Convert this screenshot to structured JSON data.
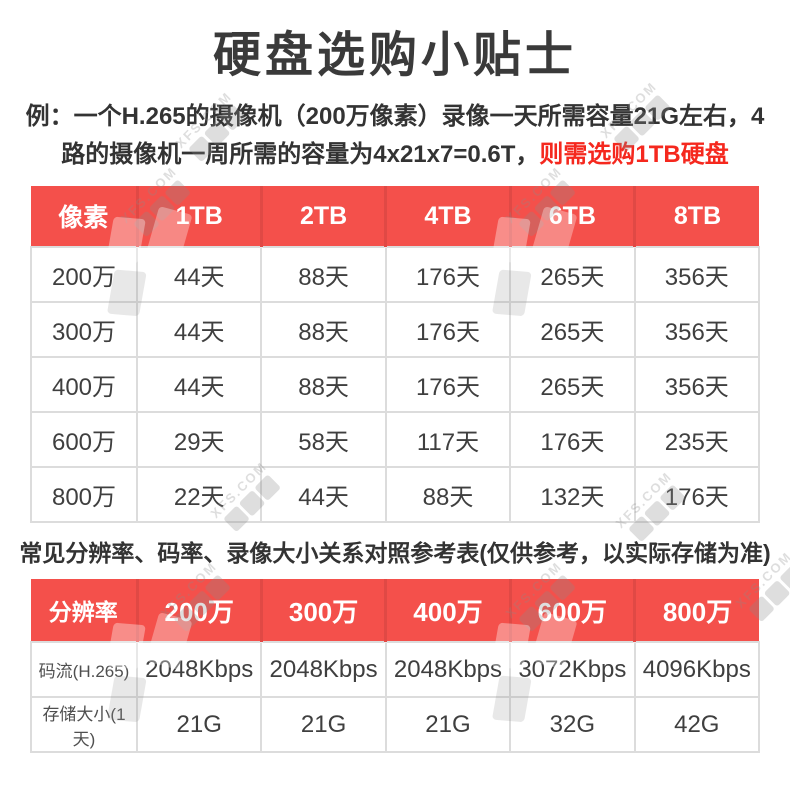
{
  "title": "硬盘选购小贴士",
  "example": {
    "line1": "例：一个H.265的摄像机（200万像素）录像一天所需容量21G左右，4",
    "line2_black": "路的摄像机一周所需的容量为4x21x7=0.6T，",
    "line2_red": "则需选购1TB硬盘"
  },
  "capacity_table": {
    "headers": [
      "像素",
      "1TB",
      "2TB",
      "4TB",
      "6TB",
      "8TB"
    ],
    "rows": [
      {
        "label": "200万",
        "values": [
          "44天",
          "88天",
          "176天",
          "265天",
          "356天"
        ]
      },
      {
        "label": "300万",
        "values": [
          "44天",
          "88天",
          "176天",
          "265天",
          "356天"
        ]
      },
      {
        "label": "400万",
        "values": [
          "44天",
          "88天",
          "176天",
          "265天",
          "356天"
        ]
      },
      {
        "label": "600万",
        "values": [
          "29天",
          "58天",
          "117天",
          "176天",
          "235天"
        ]
      },
      {
        "label": "800万",
        "values": [
          "22天",
          "44天",
          "88天",
          "132天",
          "176天"
        ]
      }
    ]
  },
  "reference_note": "常见分辨率、码率、录像大小关系对照参考表(仅供参考，以实际存储为准)",
  "bitrate_table": {
    "headers": [
      "分辨率",
      "200万",
      "300万",
      "400万",
      "600万",
      "800万"
    ],
    "rows": [
      {
        "label": "码流(H.265)",
        "values": [
          "2048Kbps",
          "2048Kbps",
          "2048Kbps",
          "3072Kbps",
          "4096Kbps"
        ]
      },
      {
        "label": "存储大小(1天)",
        "values": [
          "21G",
          "21G",
          "21G",
          "32G",
          "42G"
        ]
      }
    ]
  },
  "watermark": {
    "text": "XFS.COM"
  },
  "colors": {
    "header_red": "#f4504b",
    "highlight_red": "#f5281e",
    "text_dark": "#333333",
    "cell_text": "#3f3f3f",
    "border_gray": "#dcdcdc"
  }
}
